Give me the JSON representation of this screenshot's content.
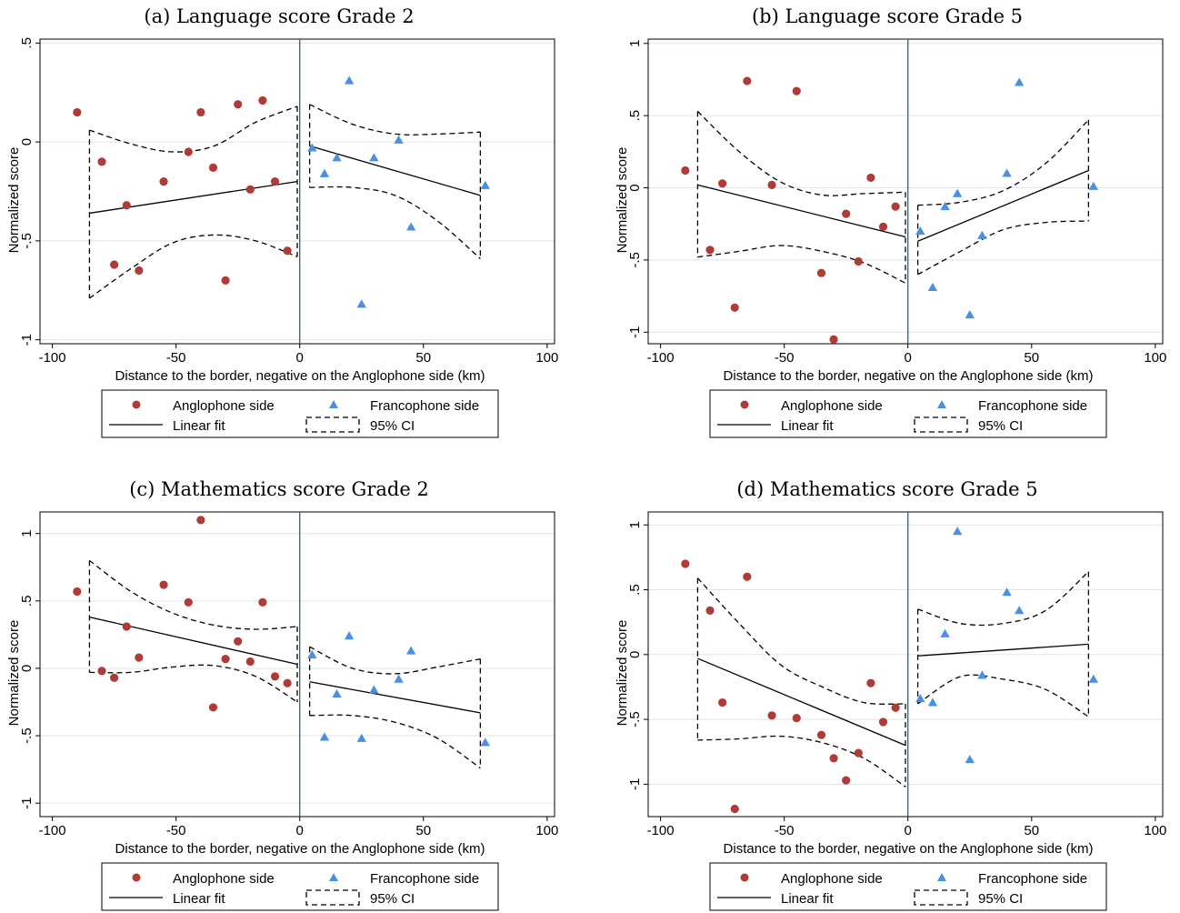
{
  "colors": {
    "anglophone": "#b03a35",
    "francophone": "#4a90e2",
    "border_line": "#2f5f7a",
    "grid": "#dfe3e8"
  },
  "chart_data": [
    {
      "type": "scatter",
      "title": "(a) Language score Grade 2",
      "xlabel": "Distance to the border, negative on the Anglophone side (km)",
      "ylabel": "Normalized score",
      "xlim": [
        -105,
        103
      ],
      "ylim": [
        -1.02,
        0.52
      ],
      "xticks": [
        -100,
        -50,
        0,
        50,
        100
      ],
      "xtick_labels": [
        "-100",
        "-50",
        "0",
        "50",
        "100"
      ],
      "yticks": [
        -1,
        -0.5,
        0,
        0.5
      ],
      "ytick_labels": [
        "-1",
        "-.5",
        "0",
        ".5"
      ],
      "vline_x": 0,
      "legend": {
        "position": "below",
        "entries": [
          "Anglophone side",
          "Francophone side",
          "Linear fit",
          "95% CI"
        ]
      },
      "series": [
        {
          "name": "Anglophone side",
          "marker": "circle",
          "x": [
            -90,
            -80,
            -75,
            -70,
            -65,
            -55,
            -45,
            -40,
            -35,
            -30,
            -25,
            -20,
            -15,
            -10,
            -5
          ],
          "y": [
            0.15,
            -0.1,
            -0.62,
            -0.32,
            -0.65,
            -0.2,
            -0.05,
            0.15,
            -0.13,
            -0.7,
            0.19,
            -0.24,
            0.21,
            -0.2,
            -0.55
          ]
        },
        {
          "name": "Francophone side",
          "marker": "triangle",
          "x": [
            5,
            10,
            15,
            20,
            25,
            30,
            40,
            45,
            75
          ],
          "y": [
            -0.03,
            -0.16,
            -0.08,
            0.31,
            -0.82,
            -0.08,
            0.01,
            -0.43,
            -0.22
          ]
        }
      ],
      "fits": [
        {
          "side": "anglophone",
          "x": [
            -85,
            -1
          ],
          "y": [
            -0.36,
            -0.2
          ],
          "ci_upper": [
            0.06,
            -0.01,
            -0.05,
            -0.02,
            0.1,
            0.18
          ],
          "ci_lower": [
            -0.79,
            -0.64,
            -0.51,
            -0.47,
            -0.5,
            -0.58
          ]
        },
        {
          "side": "francophone",
          "x": [
            4,
            73
          ],
          "y": [
            -0.02,
            -0.27
          ],
          "ci_upper": [
            0.19,
            0.09,
            0.04,
            0.04,
            0.05
          ],
          "ci_lower": [
            -0.23,
            -0.23,
            -0.27,
            -0.4,
            -0.59
          ]
        }
      ]
    },
    {
      "type": "scatter",
      "title": "(b) Language score Grade 5",
      "xlabel": "Distance to the border, negative on the Anglophone side (km)",
      "ylabel": "Normalized score",
      "xlim": [
        -105,
        103
      ],
      "ylim": [
        -1.08,
        1.03
      ],
      "xticks": [
        -100,
        -50,
        0,
        50,
        100
      ],
      "xtick_labels": [
        "-100",
        "-50",
        "0",
        "50",
        "100"
      ],
      "yticks": [
        -1,
        -0.5,
        0,
        0.5,
        1
      ],
      "ytick_labels": [
        "-1",
        "-.5",
        "0",
        ".5",
        "1"
      ],
      "vline_x": 0,
      "legend": {
        "position": "below",
        "entries": [
          "Anglophone side",
          "Francophone side",
          "Linear fit",
          "95% CI"
        ]
      },
      "series": [
        {
          "name": "Anglophone side",
          "marker": "circle",
          "x": [
            -90,
            -80,
            -75,
            -70,
            -65,
            -55,
            -45,
            -35,
            -30,
            -25,
            -20,
            -15,
            -10,
            -5
          ],
          "y": [
            0.12,
            -0.43,
            0.03,
            -0.83,
            0.74,
            0.02,
            0.67,
            -0.59,
            -1.05,
            -0.18,
            -0.51,
            0.07,
            -0.27,
            -0.13
          ]
        },
        {
          "name": "Francophone side",
          "marker": "triangle",
          "x": [
            5,
            10,
            15,
            20,
            25,
            30,
            40,
            45,
            75
          ],
          "y": [
            -0.3,
            -0.69,
            -0.13,
            -0.04,
            -0.88,
            -0.33,
            0.1,
            0.73,
            0.01
          ]
        }
      ],
      "fits": [
        {
          "side": "anglophone",
          "x": [
            -85,
            -1
          ],
          "y": [
            0.02,
            -0.34
          ],
          "ci_upper": [
            0.53,
            0.25,
            0.04,
            -0.05,
            -0.04,
            -0.03
          ],
          "ci_lower": [
            -0.48,
            -0.44,
            -0.4,
            -0.44,
            -0.52,
            -0.66
          ]
        },
        {
          "side": "francophone",
          "x": [
            4,
            73
          ],
          "y": [
            -0.37,
            0.12
          ],
          "ci_upper": [
            -0.12,
            -0.1,
            -0.02,
            0.17,
            0.47
          ],
          "ci_lower": [
            -0.6,
            -0.44,
            -0.29,
            -0.24,
            -0.23
          ]
        }
      ]
    },
    {
      "type": "scatter",
      "title": "(c) Mathematics score Grade 2",
      "xlabel": "Distance to the border, negative on the Anglophone side (km)",
      "ylabel": "Normalized score",
      "xlim": [
        -105,
        103
      ],
      "ylim": [
        -1.1,
        1.16
      ],
      "xticks": [
        -100,
        -50,
        0,
        50,
        100
      ],
      "xtick_labels": [
        "-100",
        "-50",
        "0",
        "50",
        "100"
      ],
      "yticks": [
        -1,
        -0.5,
        0,
        0.5,
        1
      ],
      "ytick_labels": [
        "-1",
        "-.5",
        "0",
        ".5",
        "1"
      ],
      "vline_x": 0,
      "legend": {
        "position": "below",
        "entries": [
          "Anglophone side",
          "Francophone side",
          "Linear fit",
          "95% CI"
        ]
      },
      "series": [
        {
          "name": "Anglophone side",
          "marker": "circle",
          "x": [
            -90,
            -80,
            -75,
            -70,
            -65,
            -55,
            -45,
            -40,
            -35,
            -30,
            -25,
            -20,
            -15,
            -10,
            -5
          ],
          "y": [
            0.57,
            -0.02,
            -0.07,
            0.31,
            0.08,
            0.62,
            0.49,
            1.1,
            -0.29,
            0.07,
            0.2,
            0.05,
            0.49,
            -0.06,
            -0.11
          ]
        },
        {
          "name": "Francophone side",
          "marker": "triangle",
          "x": [
            5,
            10,
            15,
            20,
            25,
            30,
            40,
            45,
            75
          ],
          "y": [
            0.1,
            -0.51,
            -0.19,
            0.24,
            -0.52,
            -0.16,
            -0.08,
            0.13,
            -0.55
          ]
        }
      ],
      "fits": [
        {
          "side": "anglophone",
          "x": [
            -85,
            -1
          ],
          "y": [
            0.38,
            0.03
          ],
          "ci_upper": [
            0.8,
            0.57,
            0.41,
            0.32,
            0.29,
            0.31
          ],
          "ci_lower": [
            -0.03,
            -0.03,
            0.01,
            0.02,
            -0.06,
            -0.25
          ]
        },
        {
          "side": "francophone",
          "x": [
            4,
            73
          ],
          "y": [
            -0.1,
            -0.33
          ],
          "ci_upper": [
            0.16,
            0.0,
            -0.04,
            0.01,
            0.07
          ],
          "ci_lower": [
            -0.35,
            -0.35,
            -0.4,
            -0.52,
            -0.74
          ]
        }
      ]
    },
    {
      "type": "scatter",
      "title": "(d) Mathematics score Grade 5",
      "xlabel": "Distance to the border, negative on the Anglophone side (km)",
      "ylabel": "Normalized score",
      "xlim": [
        -105,
        103
      ],
      "ylim": [
        -1.25,
        1.1
      ],
      "xticks": [
        -100,
        -50,
        0,
        50,
        100
      ],
      "xtick_labels": [
        "-100",
        "-50",
        "0",
        "50",
        "100"
      ],
      "yticks": [
        -1,
        -0.5,
        0,
        0.5,
        1
      ],
      "ytick_labels": [
        "-1",
        "-.5",
        "0",
        ".5",
        "1"
      ],
      "vline_x": 0,
      "legend": {
        "position": "below",
        "entries": [
          "Anglophone side",
          "Francophone side",
          "Linear fit",
          "95% CI"
        ]
      },
      "series": [
        {
          "name": "Anglophone side",
          "marker": "circle",
          "x": [
            -90,
            -80,
            -75,
            -70,
            -65,
            -55,
            -45,
            -35,
            -30,
            -25,
            -20,
            -15,
            -10,
            -5
          ],
          "y": [
            0.7,
            0.34,
            -0.37,
            -1.19,
            0.6,
            -0.47,
            -0.49,
            -0.62,
            -0.8,
            -0.97,
            -0.76,
            -0.22,
            -0.52,
            -0.41
          ]
        },
        {
          "name": "Francophone side",
          "marker": "triangle",
          "x": [
            5,
            10,
            15,
            20,
            25,
            30,
            40,
            45,
            75
          ],
          "y": [
            -0.34,
            -0.37,
            0.16,
            0.95,
            -0.81,
            -0.16,
            0.48,
            0.34,
            -0.19
          ]
        }
      ],
      "fits": [
        {
          "side": "anglophone",
          "x": [
            -85,
            -1
          ],
          "y": [
            -0.03,
            -0.7
          ],
          "ci_upper": [
            0.59,
            0.24,
            -0.08,
            -0.25,
            -0.37,
            -0.38
          ],
          "ci_lower": [
            -0.66,
            -0.65,
            -0.63,
            -0.68,
            -0.8,
            -1.02
          ]
        },
        {
          "side": "francophone",
          "x": [
            4,
            73
          ],
          "y": [
            -0.01,
            0.08
          ],
          "ci_upper": [
            0.35,
            0.24,
            0.24,
            0.34,
            0.64
          ],
          "ci_lower": [
            -0.38,
            -0.17,
            -0.19,
            -0.27,
            -0.48
          ]
        }
      ]
    }
  ]
}
